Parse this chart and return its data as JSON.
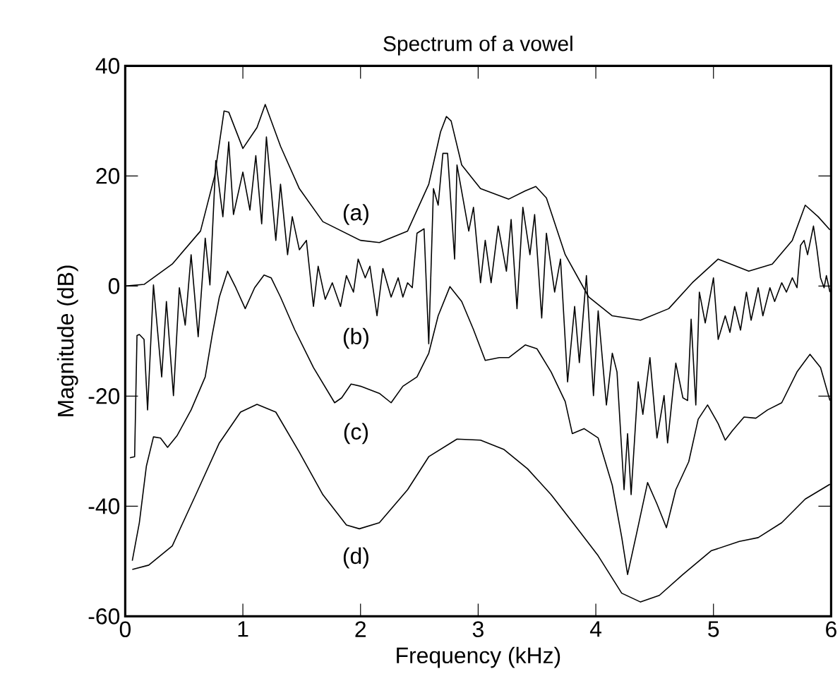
{
  "chart_data": {
    "type": "line",
    "title": "Spectrum of a vowel",
    "xlabel": "Frequency (kHz)",
    "ylabel": "Magnitude (dB)",
    "xlim": [
      0,
      6
    ],
    "ylim": [
      -60,
      40
    ],
    "xticks": [
      0,
      1,
      2,
      3,
      4,
      5,
      6
    ],
    "yticks": [
      -60,
      -40,
      -20,
      0,
      20,
      40
    ],
    "grid": false,
    "marker": "none",
    "line_style": "solid",
    "annotations": [
      "(a)",
      "(b)",
      "(c)",
      "(d)"
    ],
    "series": [
      {
        "color": "#000000",
        "x": [
          0,
          0.16,
          0.4,
          0.64,
          0.76,
          0.84,
          0.88,
          1.0,
          1.12,
          1.19,
          1.32,
          1.48,
          1.68,
          2.0,
          2.16,
          2.4,
          2.58,
          2.68,
          2.73,
          2.77,
          2.86,
          3.02,
          3.26,
          3.4,
          3.49,
          3.58,
          3.74,
          3.94,
          4.14,
          4.38,
          4.62,
          4.82,
          5.04,
          5.3,
          5.5,
          5.67,
          5.78,
          5.89,
          5.99
        ],
        "values": [
          0,
          0.3,
          4,
          10,
          20,
          31.8,
          31.6,
          25,
          28.8,
          33,
          25.4,
          17.7,
          11.7,
          8.3,
          7.9,
          10,
          18.5,
          28,
          30.8,
          30,
          22,
          17.7,
          15.8,
          17.3,
          18.1,
          16,
          5.7,
          -2,
          -5.4,
          -6.2,
          -4.1,
          0.6,
          4.9,
          2.7,
          4,
          8.3,
          14.7,
          12.6,
          10.2
        ]
      },
      {
        "color": "#000000",
        "x": [
          0.04,
          0.08,
          0.1,
          0.12,
          0.16,
          0.19,
          0.24,
          0.31,
          0.35,
          0.41,
          0.46,
          0.51,
          0.56,
          0.62,
          0.68,
          0.72,
          0.77,
          0.83,
          0.88,
          0.92,
          1.0,
          1.06,
          1.11,
          1.16,
          1.2,
          1.28,
          1.32,
          1.38,
          1.42,
          1.48,
          1.54,
          1.6,
          1.64,
          1.7,
          1.76,
          1.83,
          1.88,
          1.94,
          1.98,
          2.04,
          2.08,
          2.14,
          2.19,
          2.26,
          2.32,
          2.36,
          2.4,
          2.44,
          2.48,
          2.54,
          2.58,
          2.62,
          2.66,
          2.7,
          2.74,
          2.8,
          2.82,
          2.92,
          2.96,
          3.02,
          3.06,
          3.11,
          3.17,
          3.24,
          3.28,
          3.33,
          3.38,
          3.44,
          3.48,
          3.54,
          3.58,
          3.65,
          3.7,
          3.76,
          3.82,
          3.86,
          3.92,
          3.98,
          4.02,
          4.09,
          4.14,
          4.18,
          4.24,
          4.27,
          4.3,
          4.36,
          4.4,
          4.46,
          4.52,
          4.58,
          4.61,
          4.68,
          4.74,
          4.78,
          4.81,
          4.85,
          4.88,
          4.93,
          5.0,
          5.04,
          5.1,
          5.14,
          5.18,
          5.23,
          5.28,
          5.32,
          5.38,
          5.42,
          5.48,
          5.52,
          5.58,
          5.62,
          5.67,
          5.71,
          5.74,
          5.77,
          5.8,
          5.85,
          5.88,
          5.91,
          5.94,
          5.96,
          5.99
        ],
        "values": [
          -31.2,
          -31,
          -9,
          -8.8,
          -9.7,
          -22.5,
          0.2,
          -16.5,
          -2.8,
          -19.9,
          -0.3,
          -7.1,
          5.7,
          -9.2,
          8.7,
          0.2,
          22.8,
          12.6,
          26.2,
          13,
          20.7,
          13.8,
          23.7,
          11.3,
          27.1,
          8.3,
          18.5,
          5.7,
          12.6,
          6.6,
          8.3,
          -3.7,
          3.6,
          -2.4,
          0.6,
          -3.7,
          1.9,
          -1.1,
          4.9,
          1.5,
          3.6,
          -5.4,
          3.2,
          -2,
          1.5,
          -2,
          0.6,
          -0.3,
          9.6,
          10.4,
          -10.5,
          17.7,
          14.7,
          24.1,
          24.1,
          4.9,
          22,
          10,
          14.3,
          0.6,
          8.3,
          0.6,
          10.9,
          2.7,
          12.1,
          -4.1,
          14.3,
          5.7,
          13,
          -5.8,
          9.6,
          -1.1,
          4.9,
          -17.4,
          -3.7,
          -13.9,
          1.9,
          -19.9,
          -4.5,
          -21.6,
          -12.2,
          -15.6,
          -37,
          -26.8,
          -37.9,
          -17.4,
          -23.3,
          -13,
          -27.6,
          -19.9,
          -28.5,
          -14,
          -20.3,
          -20.8,
          -6,
          -21.6,
          -1.1,
          -6.7,
          1.5,
          -9.7,
          -5.4,
          -8.4,
          -3.7,
          -8,
          -1.1,
          -6.2,
          -0.3,
          -5.4,
          -0.3,
          -2.8,
          0.6,
          -1.1,
          1.5,
          -0.3,
          7.4,
          8.3,
          5.7,
          10.9,
          6.6,
          1.5,
          -0.3,
          1.9,
          -1.1
        ]
      },
      {
        "color": "#000000",
        "x": [
          0.06,
          0.12,
          0.18,
          0.24,
          0.3,
          0.36,
          0.44,
          0.56,
          0.68,
          0.74,
          0.8,
          0.87,
          0.94,
          1.02,
          1.1,
          1.18,
          1.24,
          1.32,
          1.44,
          1.6,
          1.78,
          1.84,
          1.92,
          2.0,
          2.16,
          2.26,
          2.36,
          2.48,
          2.58,
          2.66,
          2.76,
          2.86,
          2.96,
          3.06,
          3.18,
          3.26,
          3.4,
          3.5,
          3.62,
          3.74,
          3.8,
          3.9,
          4.02,
          4.14,
          4.22,
          4.27,
          4.34,
          4.44,
          4.52,
          4.6,
          4.68,
          4.79,
          4.87,
          4.95,
          5.04,
          5.1,
          5.16,
          5.26,
          5.36,
          5.46,
          5.58,
          5.71,
          5.82,
          5.91,
          5.99
        ],
        "values": [
          -49.9,
          -43,
          -32.7,
          -27.4,
          -27.6,
          -29.3,
          -27.2,
          -22.5,
          -16.5,
          -8.8,
          -2,
          2.7,
          -0.3,
          -4.1,
          -0.3,
          2,
          1.5,
          -2,
          -7.9,
          -14.8,
          -21.2,
          -20.3,
          -17.8,
          -18.2,
          -19.5,
          -21.2,
          -18.2,
          -16.5,
          -12.2,
          -5.4,
          -0.1,
          -2.8,
          -7.9,
          -13.5,
          -13,
          -13,
          -10.7,
          -11.4,
          -15.6,
          -21,
          -26.8,
          -25.9,
          -27.6,
          -36.2,
          -45.6,
          -52.4,
          -45.6,
          -35.7,
          -39.6,
          -43.9,
          -37,
          -31.9,
          -24.2,
          -21.6,
          -25,
          -28,
          -26.3,
          -23.8,
          -24,
          -22.5,
          -21.2,
          -15.6,
          -12.4,
          -14.8,
          -20.8
        ]
      },
      {
        "color": "#000000",
        "x": [
          0.06,
          0.2,
          0.4,
          0.6,
          0.8,
          0.98,
          1.12,
          1.28,
          1.48,
          1.68,
          1.88,
          1.99,
          2.16,
          2.4,
          2.58,
          2.82,
          3.02,
          3.22,
          3.42,
          3.62,
          3.82,
          4.02,
          4.22,
          4.38,
          4.54,
          4.74,
          4.98,
          5.22,
          5.38,
          5.58,
          5.78,
          5.99
        ],
        "values": [
          -51.5,
          -50.7,
          -47.2,
          -37.9,
          -28.5,
          -22.9,
          -21.5,
          -22.9,
          -30.2,
          -37.9,
          -43.4,
          -44.1,
          -43,
          -37,
          -31,
          -27.8,
          -28,
          -29.7,
          -33.2,
          -37.9,
          -43.4,
          -49,
          -55.8,
          -57.4,
          -56.2,
          -52.4,
          -48.1,
          -46.4,
          -45.7,
          -43,
          -38.7,
          -36
        ]
      }
    ]
  }
}
